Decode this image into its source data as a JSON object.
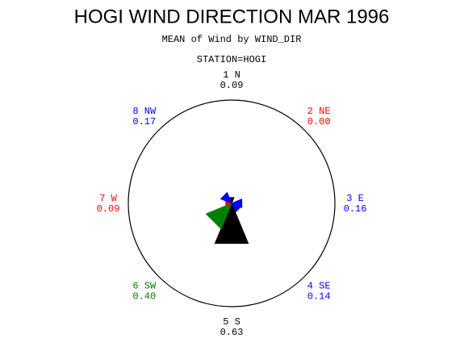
{
  "chart_data": {
    "type": "star",
    "title": "HOGI WIND DIRECTION MAR 1996",
    "subtitle": "MEAN of Wind by WIND_DIR",
    "station": "STATION=HOGI",
    "categories": [
      "1 N",
      "2 NE",
      "3 E",
      "4 SE",
      "5 S",
      "6 SW",
      "7 W",
      "8 NW"
    ],
    "values": [
      0.09,
      0.0,
      0.16,
      0.14,
      0.63,
      0.4,
      0.09,
      0.17
    ],
    "value_labels": [
      "0.09",
      "0.00",
      "0.16",
      "0.14",
      "0.63",
      "0.40",
      "0.09",
      "0.17"
    ],
    "colors": [
      "#000000",
      "#ff0000",
      "#0000ff",
      "#0000ff",
      "#000000",
      "#008000",
      "#ff0000",
      "#0000ff"
    ],
    "rlim": [
      0,
      1.5
    ]
  }
}
